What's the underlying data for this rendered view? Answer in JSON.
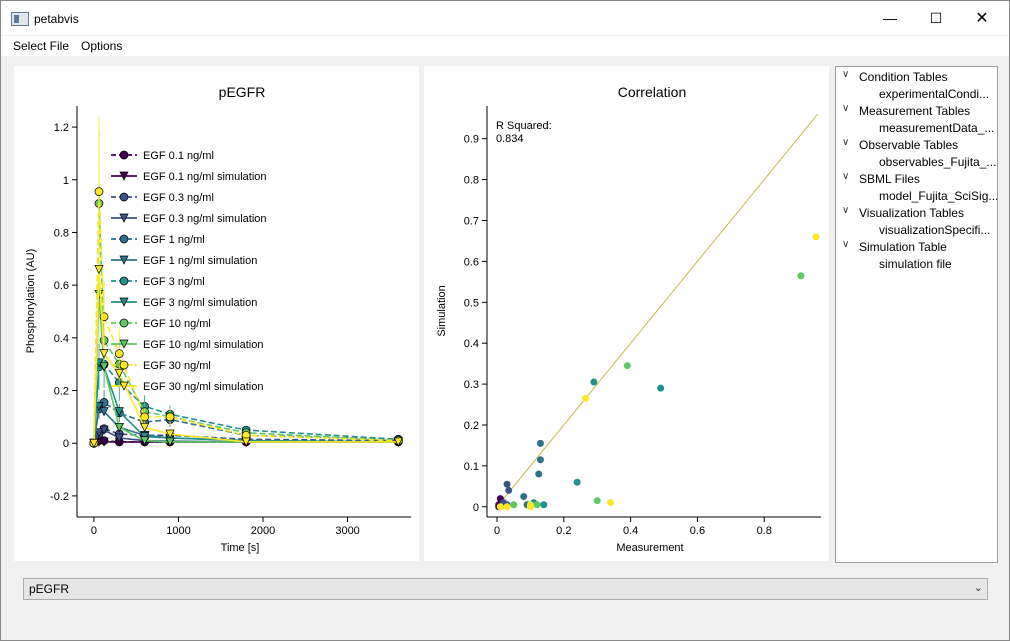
{
  "window": {
    "title": "petabvis"
  },
  "menu": {
    "items": [
      "Select File",
      "Options"
    ]
  },
  "left_plot": {
    "title": "pEGFR",
    "xlabel": "Time [s]",
    "ylabel": "Phosphorylation (AU)",
    "xticks": [
      "0",
      "1000",
      "2000",
      "3000"
    ],
    "yticks": [
      "-0.2",
      "0",
      "0.2",
      "0.4",
      "0.6",
      "0.8",
      "1",
      "1.2"
    ],
    "legend": [
      "EGF 0.1 ng/ml",
      "EGF 0.1 ng/ml simulation",
      "EGF 0.3 ng/ml",
      "EGF 0.3 ng/ml simulation",
      "EGF 1 ng/ml",
      "EGF 1 ng/ml simulation",
      "EGF 3 ng/ml",
      "EGF 3 ng/ml simulation",
      "EGF 10 ng/ml",
      "EGF 10 ng/ml simulation",
      "EGF 30 ng/ml",
      "EGF 30 ng/ml simulation"
    ]
  },
  "right_plot": {
    "title": "Correlation",
    "xlabel": "Measurement",
    "ylabel": "Simulation",
    "xticks": [
      "0",
      "0.2",
      "0.4",
      "0.6",
      "0.8"
    ],
    "yticks": [
      "0",
      "0.1",
      "0.2",
      "0.3",
      "0.4",
      "0.5",
      "0.6",
      "0.7",
      "0.8",
      "0.9"
    ],
    "annotation_label": "R Squared:",
    "annotation_value": "0.834"
  },
  "tree": {
    "nodes": [
      {
        "label": "Condition Tables",
        "child": "experimentalCondi..."
      },
      {
        "label": "Measurement Tables",
        "child": "measurementData_..."
      },
      {
        "label": "Observable Tables",
        "child": "observables_Fujita_..."
      },
      {
        "label": "SBML Files",
        "child": "model_Fujita_SciSig..."
      },
      {
        "label": "Visualization Tables",
        "child": "visualizationSpecifi..."
      },
      {
        "label": "Simulation Table",
        "child": "simulation file"
      }
    ]
  },
  "combo": {
    "value": "pEGFR"
  },
  "chart_data": [
    {
      "type": "line",
      "title": "pEGFR",
      "xlabel": "Time [s]",
      "ylabel": "Phosphorylation (AU)",
      "xlim": [
        -200,
        3750
      ],
      "ylim": [
        -0.28,
        1.28
      ],
      "x": [
        0,
        60,
        120,
        300,
        600,
        900,
        1800,
        3600
      ],
      "colors": [
        "#440154",
        "#31688e",
        "#2f6b8e",
        "#21918c",
        "#5ec962",
        "#fde725"
      ],
      "series": [
        {
          "name": "EGF 0.1 ng/ml",
          "color": "#440154",
          "values": [
            0,
            0.01,
            0.01,
            0.005,
            0.005,
            0.005,
            0.005,
            0.005
          ]
        },
        {
          "name": "EGF 0.1 ng/ml simulation",
          "color": "#440154",
          "values": [
            0,
            0.005,
            0.005,
            0.005,
            0.005,
            0.005,
            0.005,
            0.005
          ]
        },
        {
          "name": "EGF 0.3 ng/ml",
          "color": "#3b528b",
          "values": [
            0,
            0.035,
            0.055,
            0.035,
            0.03,
            0.03,
            0.015,
            0.01
          ]
        },
        {
          "name": "EGF 0.3 ng/ml simulation",
          "color": "#3b528b",
          "values": [
            0,
            0.04,
            0.05,
            0.02,
            0.01,
            0.008,
            0.005,
            0.005
          ]
        },
        {
          "name": "EGF 1 ng/ml",
          "color": "#2c728e",
          "values": [
            0,
            0.13,
            0.155,
            0.115,
            0.08,
            0.09,
            0.03,
            0.015
          ]
        },
        {
          "name": "EGF 1 ng/ml simulation",
          "color": "#2c728e",
          "values": [
            0,
            0.14,
            0.12,
            0.06,
            0.03,
            0.02,
            0.01,
            0.005
          ]
        },
        {
          "name": "EGF 3 ng/ml",
          "color": "#21918c",
          "values": [
            0,
            0.29,
            0.3,
            0.23,
            0.14,
            0.11,
            0.05,
            0.015
          ]
        },
        {
          "name": "EGF 3 ng/ml simulation",
          "color": "#21918c",
          "values": [
            0,
            0.305,
            0.29,
            0.12,
            0.025,
            0.02,
            0.01,
            0.005
          ]
        },
        {
          "name": "EGF 10 ng/ml",
          "color": "#5ec962",
          "values": [
            0,
            0.91,
            0.39,
            0.3,
            0.12,
            0.1,
            0.04,
            0.01
          ]
        },
        {
          "name": "EGF 10 ng/ml simulation",
          "color": "#5ec962",
          "values": [
            0,
            0.565,
            0.29,
            0.06,
            0.01,
            0.005,
            0.005,
            0.005
          ]
        },
        {
          "name": "EGF 30 ng/ml",
          "color": "#fde725",
          "values": [
            0,
            0.955,
            0.48,
            0.34,
            0.1,
            0.1,
            0.03,
            0.01
          ]
        },
        {
          "name": "EGF 30 ng/ml simulation",
          "color": "#fde725",
          "values": [
            0,
            0.66,
            0.34,
            0.265,
            0.06,
            0.035,
            0.005,
            0.005
          ]
        }
      ]
    },
    {
      "type": "scatter",
      "title": "Correlation",
      "xlabel": "Measurement",
      "ylabel": "Simulation",
      "xlim": [
        -0.03,
        0.97
      ],
      "ylim": [
        -0.025,
        0.98
      ],
      "annotation": "R Squared: 0.834",
      "identity_line": true,
      "points": [
        {
          "x": 0.005,
          "y": 0.005,
          "color": "#440154"
        },
        {
          "x": 0.01,
          "y": 0.02,
          "color": "#440154"
        },
        {
          "x": 0.005,
          "y": 0.0,
          "color": "#440154"
        },
        {
          "x": 0.02,
          "y": 0.005,
          "color": "#440154"
        },
        {
          "x": 0.03,
          "y": 0.055,
          "color": "#3b528b"
        },
        {
          "x": 0.035,
          "y": 0.04,
          "color": "#3b528b"
        },
        {
          "x": 0.02,
          "y": 0.01,
          "color": "#3b528b"
        },
        {
          "x": 0.03,
          "y": 0.005,
          "color": "#3b528b"
        },
        {
          "x": 0.13,
          "y": 0.155,
          "color": "#2c728e"
        },
        {
          "x": 0.13,
          "y": 0.115,
          "color": "#2c728e"
        },
        {
          "x": 0.125,
          "y": 0.08,
          "color": "#2c728e"
        },
        {
          "x": 0.08,
          "y": 0.025,
          "color": "#2c728e"
        },
        {
          "x": 0.09,
          "y": 0.005,
          "color": "#2c728e"
        },
        {
          "x": 0.24,
          "y": 0.06,
          "color": "#21918c"
        },
        {
          "x": 0.29,
          "y": 0.305,
          "color": "#21918c"
        },
        {
          "x": 0.49,
          "y": 0.29,
          "color": "#21918c"
        },
        {
          "x": 0.14,
          "y": 0.005,
          "color": "#21918c"
        },
        {
          "x": 0.11,
          "y": 0.01,
          "color": "#21918c"
        },
        {
          "x": 0.91,
          "y": 0.565,
          "color": "#5ec962"
        },
        {
          "x": 0.39,
          "y": 0.345,
          "color": "#5ec962"
        },
        {
          "x": 0.3,
          "y": 0.015,
          "color": "#5ec962"
        },
        {
          "x": 0.12,
          "y": 0.005,
          "color": "#5ec962"
        },
        {
          "x": 0.05,
          "y": 0.005,
          "color": "#5ec962"
        },
        {
          "x": 0.955,
          "y": 0.66,
          "color": "#fde725"
        },
        {
          "x": 0.265,
          "y": 0.265,
          "color": "#fde725"
        },
        {
          "x": 0.34,
          "y": 0.01,
          "color": "#fde725"
        },
        {
          "x": 0.1,
          "y": 0.005,
          "color": "#fde725"
        },
        {
          "x": 0.1,
          "y": 0.0,
          "color": "#fde725"
        },
        {
          "x": 0.03,
          "y": 0.0,
          "color": "#fde725"
        },
        {
          "x": 0.01,
          "y": 0.0,
          "color": "#fde725"
        }
      ]
    }
  ]
}
